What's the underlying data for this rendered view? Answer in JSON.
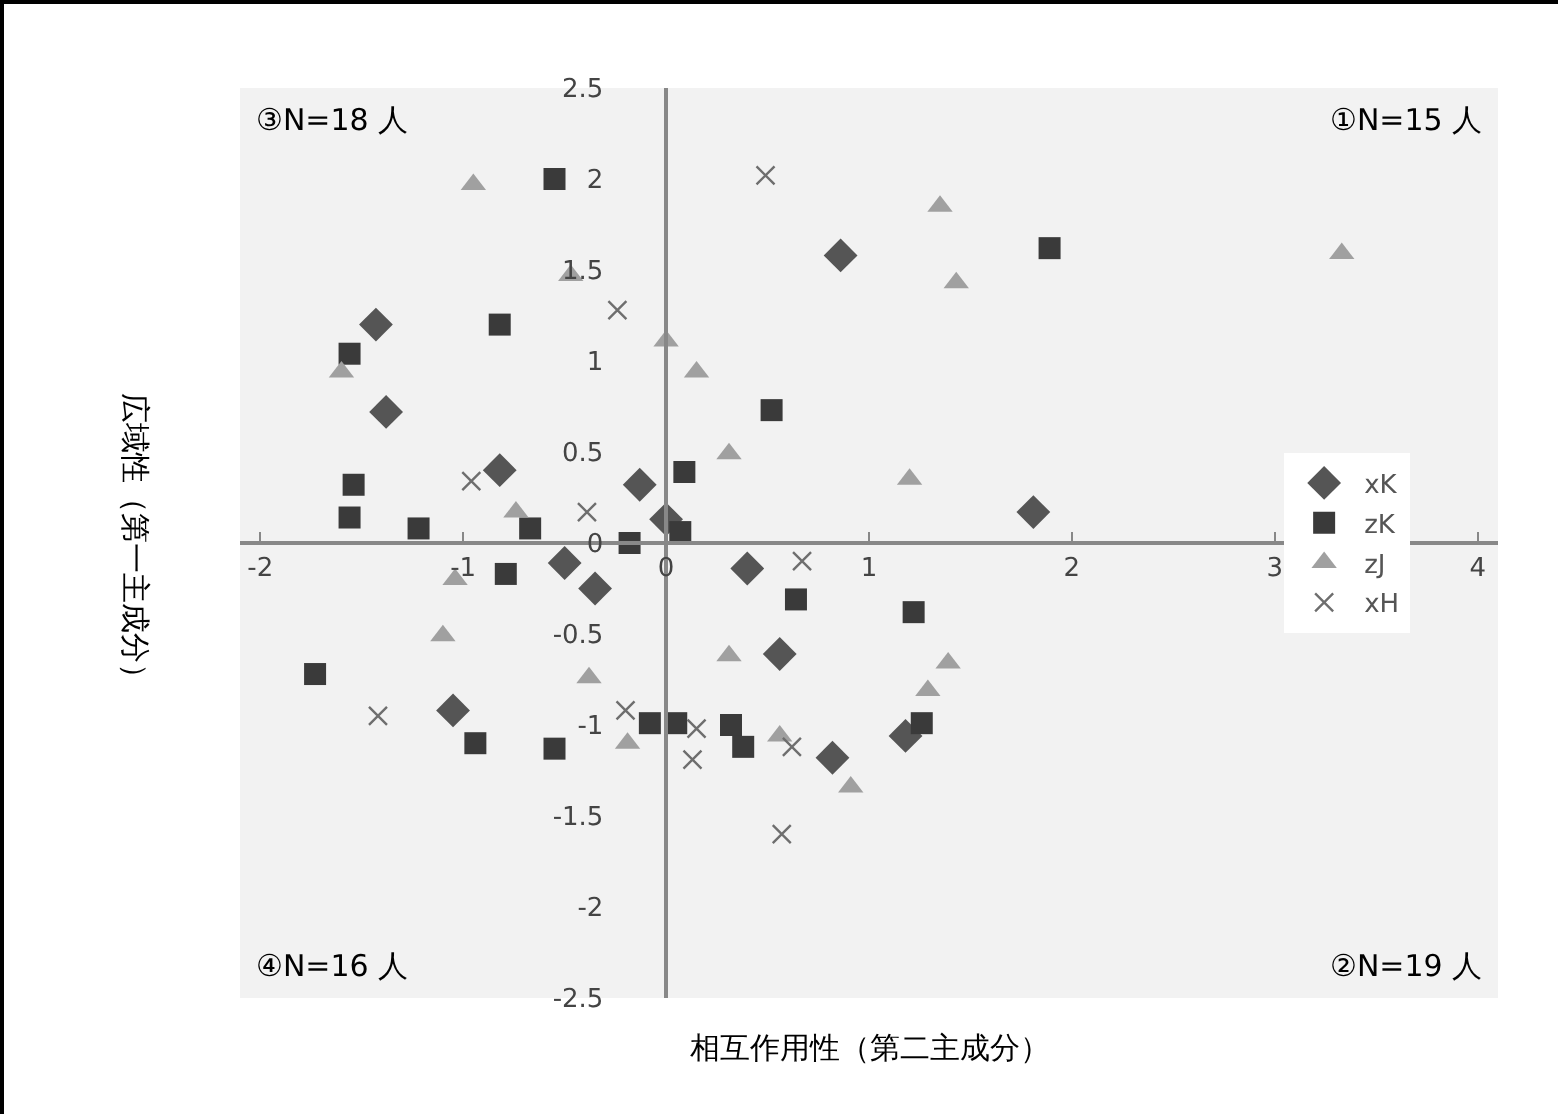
{
  "chart_data": {
    "type": "scatter",
    "xlabel": "相互作用性（第二主成分）",
    "ylabel": "広域性（第一主成分）",
    "xlim": [
      -2.1,
      4.1
    ],
    "ylim": [
      -2.5,
      2.5
    ],
    "xticks": [
      -2,
      -1,
      0,
      1,
      2,
      3,
      4
    ],
    "yticks": [
      -2.5,
      -2,
      -1.5,
      -1,
      -0.5,
      0,
      0.5,
      1,
      1.5,
      2,
      2.5
    ],
    "grid": false,
    "legend": "right",
    "annotations": [
      "③N=18 人",
      "①N=15 人",
      "④N=16 人",
      "②N=19 人"
    ],
    "series": [
      {
        "name": "xK",
        "color": "#555555",
        "marker": "diamond",
        "x": [
          -1.43,
          -1.38,
          -0.82,
          -0.13,
          0.0,
          0.86,
          1.81,
          -0.5,
          -0.35,
          -1.05,
          0.4,
          0.56,
          1.18,
          0.82
        ],
        "values": [
          1.2,
          0.72,
          0.4,
          0.32,
          0.13,
          1.58,
          0.17,
          -0.11,
          -0.25,
          -0.92,
          -0.14,
          -0.61,
          -1.06,
          -1.18
        ]
      },
      {
        "name": "zK",
        "color": "#3a3a3a",
        "marker": "square",
        "x": [
          -0.55,
          -1.56,
          -0.82,
          -1.54,
          -1.56,
          -1.22,
          -0.67,
          0.09,
          1.89,
          0.52,
          0.07,
          -0.18,
          -0.79,
          -1.73,
          -0.94,
          -0.55,
          -0.08,
          0.05,
          0.64,
          1.22,
          1.26,
          0.32,
          0.38
        ],
        "values": [
          2.0,
          1.04,
          1.2,
          0.32,
          0.14,
          0.08,
          0.08,
          0.39,
          1.62,
          0.73,
          0.06,
          0.0,
          -0.17,
          -0.72,
          -1.1,
          -1.13,
          -0.99,
          -0.99,
          -0.31,
          -0.38,
          -0.99,
          -1.0,
          -1.12
        ]
      },
      {
        "name": "zJ",
        "color": "#a0a0a0",
        "marker": "triangle",
        "x": [
          -0.95,
          -0.47,
          0.0,
          -1.6,
          -0.74,
          1.35,
          1.43,
          0.15,
          0.31,
          1.2,
          3.33,
          -1.04,
          -1.1,
          -0.38,
          -0.19,
          0.31,
          1.39,
          1.29,
          0.56,
          0.91
        ],
        "values": [
          1.97,
          1.47,
          1.11,
          0.94,
          0.17,
          1.85,
          1.43,
          0.94,
          0.49,
          0.35,
          1.59,
          -0.2,
          -0.51,
          -0.74,
          -1.1,
          -0.62,
          -0.66,
          -0.81,
          -1.06,
          -1.34
        ]
      },
      {
        "name": "xH",
        "color": "#6e6e6e",
        "marker": "cross",
        "x": [
          -0.24,
          -0.96,
          -0.39,
          0.49,
          0.67,
          -1.42,
          -0.2,
          0.15,
          0.13,
          0.62,
          0.57
        ],
        "values": [
          1.28,
          0.34,
          0.17,
          2.02,
          -0.1,
          -0.95,
          -0.92,
          -1.02,
          -1.19,
          -1.12,
          -1.6
        ]
      }
    ]
  }
}
